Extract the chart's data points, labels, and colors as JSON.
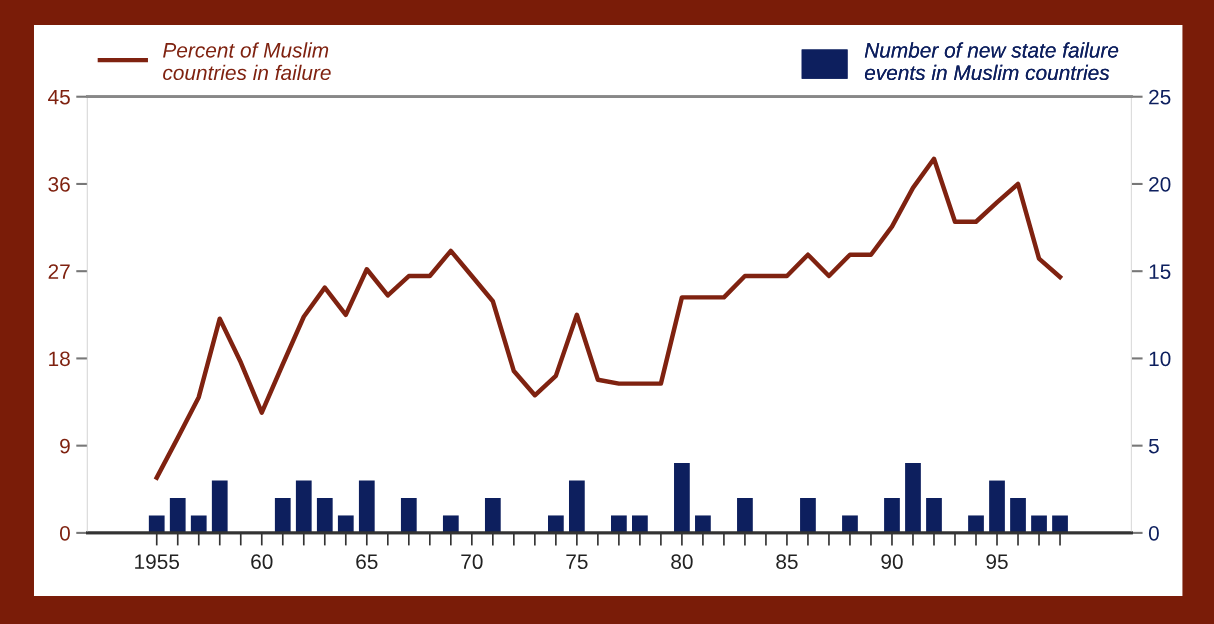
{
  "chart_data": {
    "type": "line",
    "legend": "top",
    "marker": "none",
    "line_style": "solid",
    "grid": false,
    "x": [
      1955,
      1956,
      1957,
      1958,
      1959,
      1960,
      1961,
      1962,
      1963,
      1964,
      1965,
      1966,
      1967,
      1968,
      1969,
      1970,
      1971,
      1972,
      1973,
      1974,
      1975,
      1976,
      1977,
      1978,
      1979,
      1980,
      1981,
      1982,
      1983,
      1984,
      1985,
      1986,
      1987,
      1988,
      1989,
      1990,
      1991,
      1992,
      1993,
      1994,
      1995,
      1996,
      1997,
      1998
    ],
    "xlim": [
      1951.7,
      2001.4
    ],
    "xticks": [
      {
        "value": 1955,
        "label": "1955"
      },
      {
        "value": 1956,
        "label": null
      },
      {
        "value": 1957,
        "label": null
      },
      {
        "value": 1958,
        "label": null
      },
      {
        "value": 1959,
        "label": null
      },
      {
        "value": 1960,
        "label": "60"
      },
      {
        "value": 1961,
        "label": null
      },
      {
        "value": 1962,
        "label": null
      },
      {
        "value": 1963,
        "label": null
      },
      {
        "value": 1964,
        "label": null
      },
      {
        "value": 1965,
        "label": "65"
      },
      {
        "value": 1966,
        "label": null
      },
      {
        "value": 1967,
        "label": null
      },
      {
        "value": 1968,
        "label": null
      },
      {
        "value": 1969,
        "label": null
      },
      {
        "value": 1970,
        "label": "70"
      },
      {
        "value": 1971,
        "label": null
      },
      {
        "value": 1972,
        "label": null
      },
      {
        "value": 1973,
        "label": null
      },
      {
        "value": 1974,
        "label": null
      },
      {
        "value": 1975,
        "label": "75"
      },
      {
        "value": 1976,
        "label": null
      },
      {
        "value": 1977,
        "label": null
      },
      {
        "value": 1978,
        "label": null
      },
      {
        "value": 1979,
        "label": null
      },
      {
        "value": 1980,
        "label": "80"
      },
      {
        "value": 1981,
        "label": null
      },
      {
        "value": 1982,
        "label": null
      },
      {
        "value": 1983,
        "label": null
      },
      {
        "value": 1984,
        "label": null
      },
      {
        "value": 1985,
        "label": "85"
      },
      {
        "value": 1986,
        "label": null
      },
      {
        "value": 1987,
        "label": null
      },
      {
        "value": 1988,
        "label": null
      },
      {
        "value": 1989,
        "label": null
      },
      {
        "value": 1990,
        "label": "90"
      },
      {
        "value": 1991,
        "label": null
      },
      {
        "value": 1992,
        "label": null
      },
      {
        "value": 1993,
        "label": null
      },
      {
        "value": 1994,
        "label": null
      },
      {
        "value": 1995,
        "label": "95"
      },
      {
        "value": 1996,
        "label": null
      },
      {
        "value": 1997,
        "label": null
      },
      {
        "value": 1998,
        "label": null
      }
    ],
    "ylim": [
      0,
      45
    ],
    "yticks": [
      0,
      9,
      18,
      27,
      36,
      45
    ],
    "y2lim": [
      0,
      25
    ],
    "y2ticks": [
      0,
      5,
      10,
      15,
      20,
      25
    ],
    "series": [
      {
        "name": "Percent of Muslim\ncountries in failure",
        "color": "#7f2210",
        "values": [
          5.7,
          9.8,
          14.0,
          22.1,
          17.6,
          12.4,
          17.4,
          22.3,
          25.3,
          22.5,
          27.2,
          24.5,
          26.5,
          26.5,
          29.1,
          26.5,
          23.9,
          16.7,
          14.2,
          16.2,
          22.5,
          15.8,
          15.4,
          15.4,
          15.4,
          24.3,
          24.3,
          24.3,
          26.5,
          26.5,
          26.5,
          28.7,
          26.5,
          28.7,
          28.7,
          31.6,
          35.6,
          38.6,
          32.1,
          32.1,
          34.1,
          36.0,
          28.3,
          26.4
        ]
      },
      {
        "name": "Number of new state failure\nevents in Muslim countries",
        "type": "bar",
        "axis": "y2",
        "color": "#0d1f5e",
        "values": [
          1,
          2,
          1,
          3,
          0,
          0,
          2,
          3,
          2,
          1,
          3,
          0,
          2,
          0,
          1,
          0,
          2,
          0,
          0,
          1,
          3,
          0,
          1,
          1,
          0,
          4,
          1,
          0,
          2,
          0,
          0,
          2,
          0,
          1,
          0,
          2,
          4,
          2,
          0,
          1,
          3,
          2,
          1,
          1
        ]
      }
    ]
  }
}
